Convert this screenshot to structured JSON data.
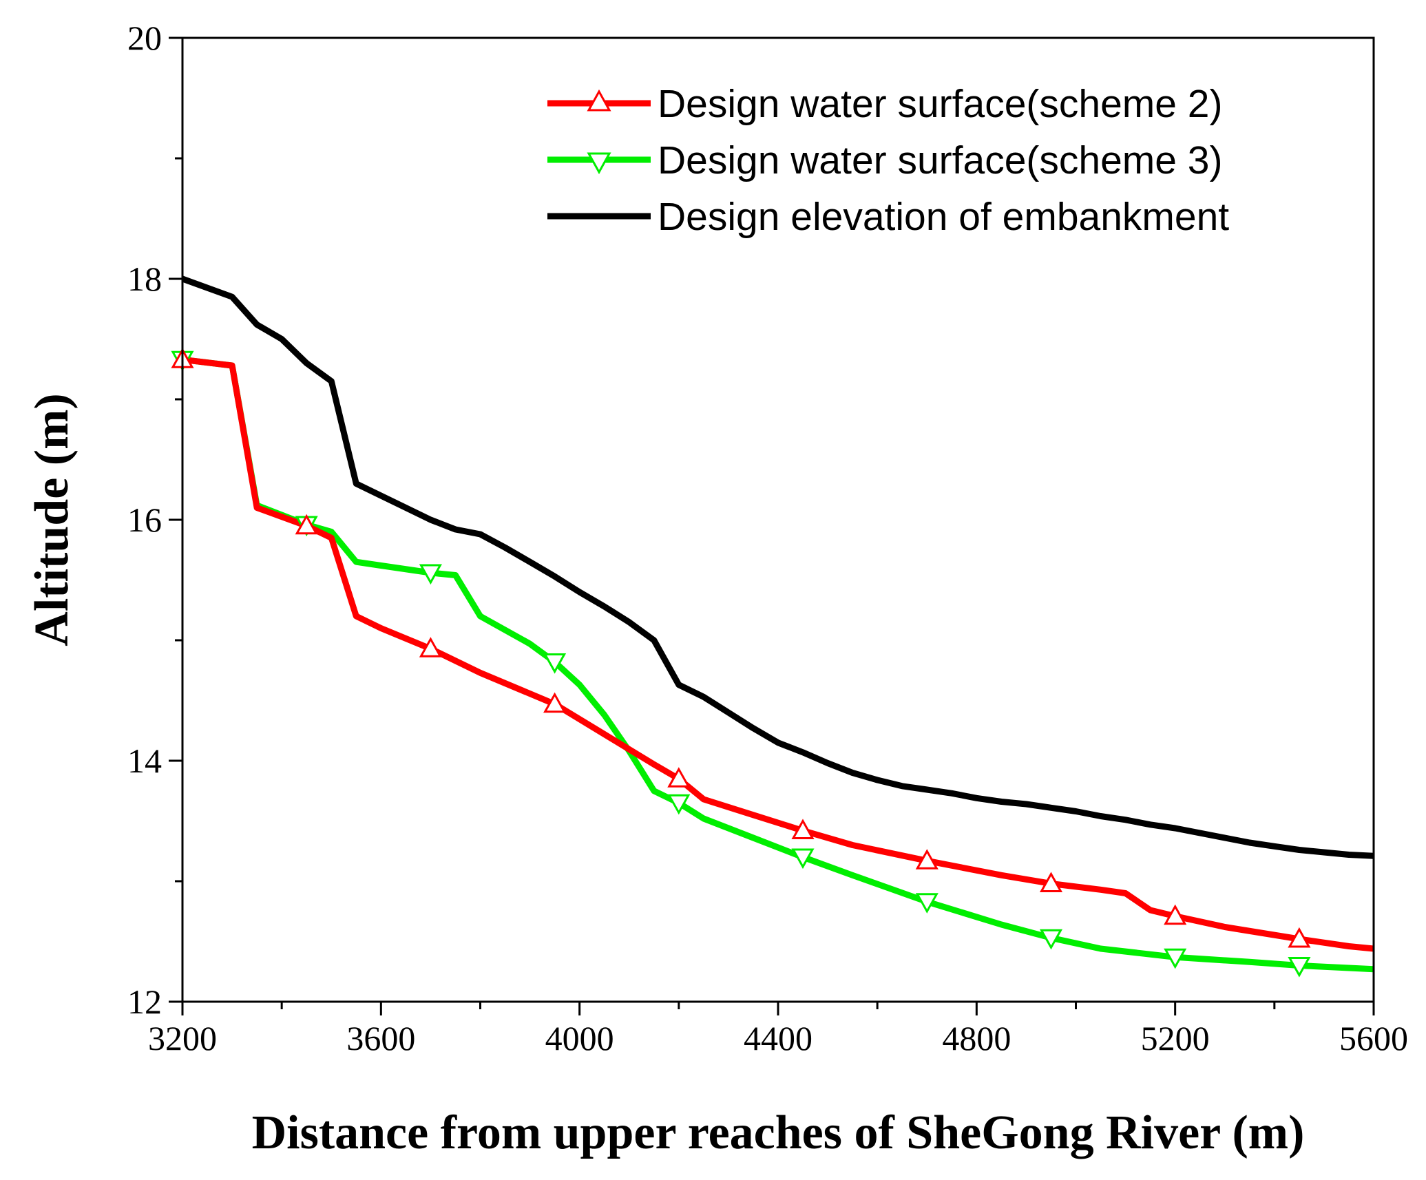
{
  "chart_data": {
    "type": "line",
    "title": "",
    "xlabel": "Distance from upper reaches of SheGong River (m)",
    "ylabel": "Altitude (m)",
    "xlim": [
      3200,
      5600
    ],
    "ylim": [
      12,
      20
    ],
    "x_ticks": [
      3200,
      3600,
      4000,
      4400,
      4800,
      5200,
      5600
    ],
    "x_tick_labels": [
      "3200",
      "3600",
      "4000",
      "4400",
      "4800",
      "5200",
      "5600"
    ],
    "x_minor_ticks": [
      3400,
      3800,
      4200,
      4600,
      5000,
      5400
    ],
    "y_ticks": [
      12,
      14,
      16,
      18,
      20
    ],
    "y_tick_labels": [
      "12",
      "14",
      "16",
      "18",
      "20"
    ],
    "y_minor_ticks": [
      13,
      15,
      17,
      19
    ],
    "grid": false,
    "legend_position": "top-right",
    "series": [
      {
        "name": "Design water surface(scheme 2)",
        "color": "#ff0000",
        "marker": "triangle-up",
        "marker_x": [
          3200,
          3450,
          3700,
          3950,
          4200,
          4450,
          4700,
          4950,
          5200,
          5450
        ],
        "x": [
          3200,
          3300,
          3350,
          3450,
          3500,
          3550,
          3600,
          3700,
          3800,
          3950,
          4050,
          4150,
          4200,
          4250,
          4350,
          4450,
          4550,
          4700,
          4850,
          4950,
          5050,
          5100,
          5150,
          5200,
          5300,
          5450,
          5550,
          5600
        ],
        "y": [
          17.33,
          17.28,
          16.1,
          15.95,
          15.85,
          15.2,
          15.1,
          14.93,
          14.73,
          14.47,
          14.22,
          13.97,
          13.85,
          13.68,
          13.55,
          13.42,
          13.3,
          13.17,
          13.05,
          12.98,
          12.93,
          12.9,
          12.76,
          12.71,
          12.62,
          12.52,
          12.46,
          12.44
        ]
      },
      {
        "name": "Design water surface(scheme 3)",
        "color": "#00ee00",
        "marker": "triangle-down",
        "marker_x": [
          3200,
          3450,
          3700,
          3950,
          4200,
          4450,
          4700,
          4950,
          5200,
          5450
        ],
        "x": [
          3200,
          3300,
          3350,
          3450,
          3500,
          3550,
          3600,
          3700,
          3750,
          3800,
          3900,
          3950,
          4000,
          4050,
          4100,
          4150,
          4200,
          4250,
          4350,
          4450,
          4550,
          4700,
          4850,
          4950,
          5050,
          5200,
          5350,
          5450,
          5550,
          5600
        ],
        "y": [
          17.33,
          17.28,
          16.12,
          15.96,
          15.9,
          15.65,
          15.62,
          15.56,
          15.54,
          15.2,
          14.97,
          14.82,
          14.63,
          14.38,
          14.08,
          13.75,
          13.65,
          13.52,
          13.36,
          13.2,
          13.05,
          12.83,
          12.64,
          12.53,
          12.44,
          12.37,
          12.33,
          12.3,
          12.28,
          12.27
        ]
      },
      {
        "name": "Design elevation of embankment",
        "color": "#000000",
        "marker": "none",
        "marker_x": [],
        "x": [
          3200,
          3300,
          3350,
          3400,
          3450,
          3500,
          3550,
          3600,
          3650,
          3700,
          3750,
          3800,
          3850,
          3900,
          3950,
          4000,
          4050,
          4100,
          4150,
          4200,
          4250,
          4300,
          4350,
          4400,
          4450,
          4500,
          4550,
          4600,
          4650,
          4700,
          4750,
          4800,
          4850,
          4900,
          4950,
          5000,
          5050,
          5100,
          5150,
          5200,
          5250,
          5300,
          5350,
          5400,
          5450,
          5500,
          5550,
          5600
        ],
        "y": [
          18.0,
          17.85,
          17.62,
          17.5,
          17.3,
          17.15,
          16.3,
          16.2,
          16.1,
          16.0,
          15.92,
          15.88,
          15.77,
          15.65,
          15.53,
          15.4,
          15.28,
          15.15,
          15.0,
          14.63,
          14.53,
          14.4,
          14.27,
          14.15,
          14.07,
          13.98,
          13.9,
          13.84,
          13.79,
          13.76,
          13.73,
          13.69,
          13.66,
          13.64,
          13.61,
          13.58,
          13.54,
          13.51,
          13.47,
          13.44,
          13.4,
          13.36,
          13.32,
          13.29,
          13.26,
          13.24,
          13.22,
          13.21
        ]
      }
    ]
  }
}
